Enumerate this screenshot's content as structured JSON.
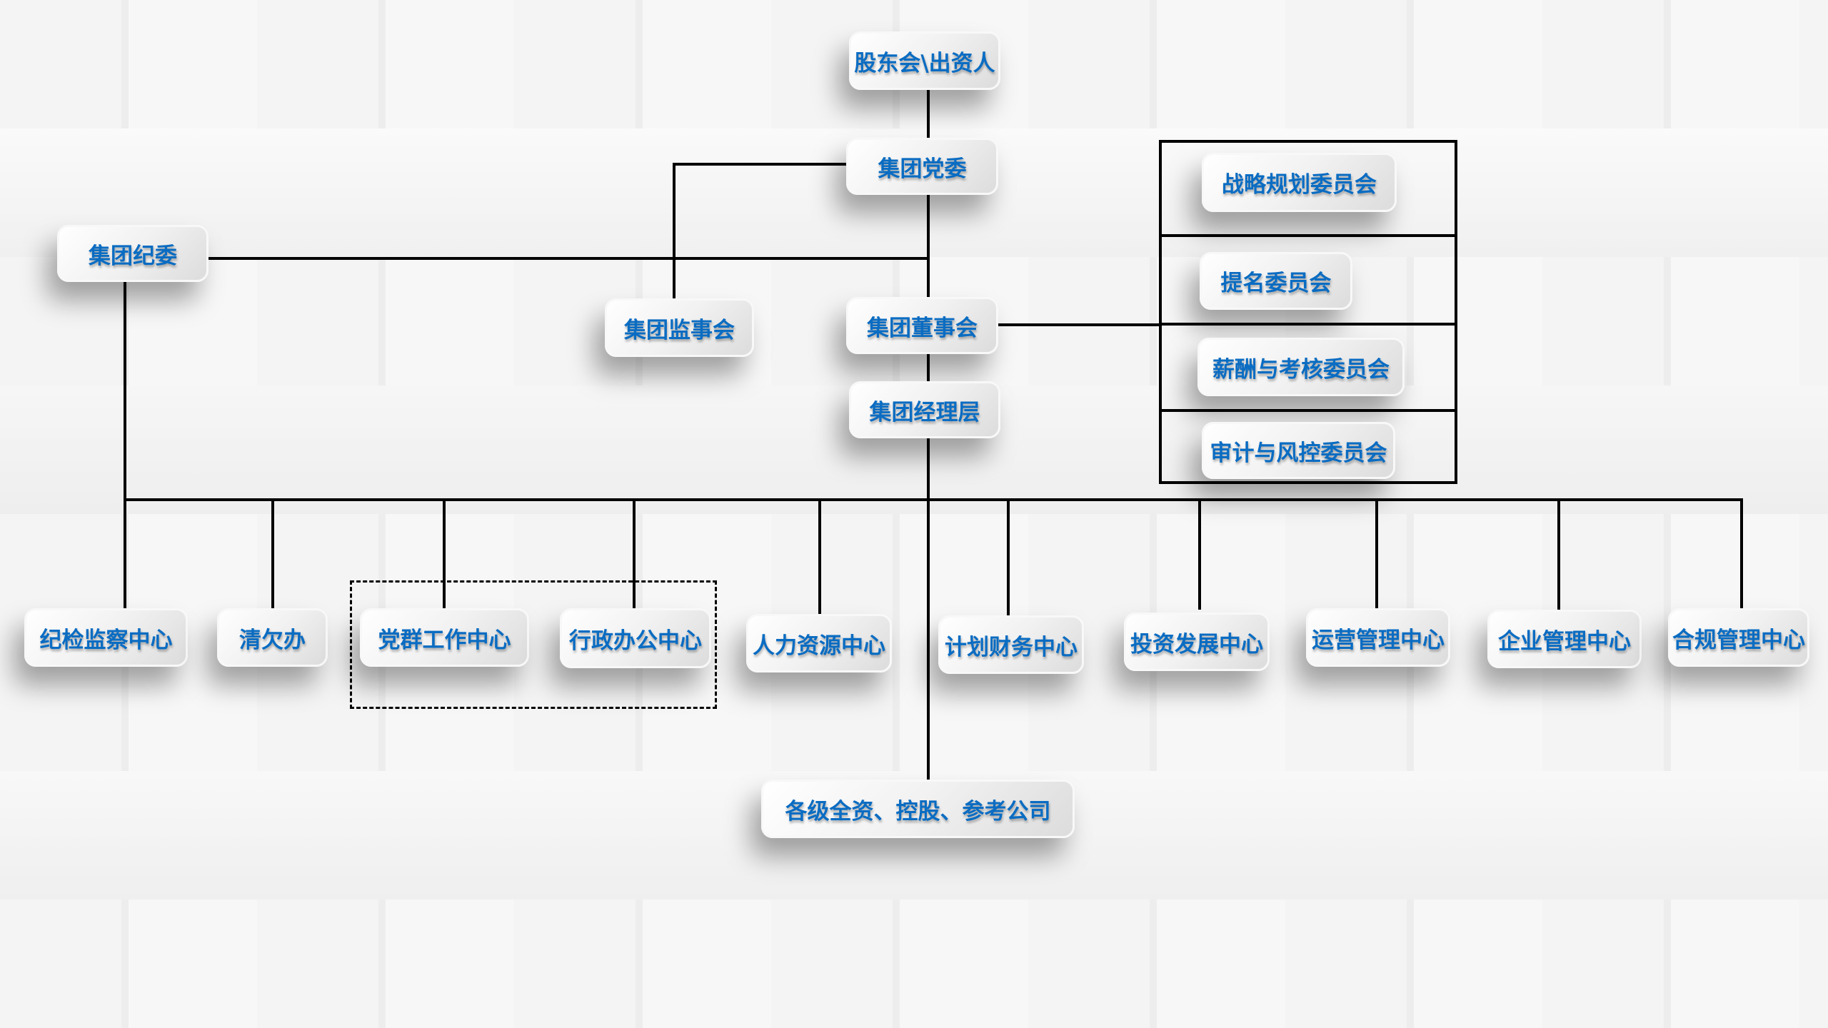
{
  "top": {
    "shareholders": "股东会\\出资人",
    "party_committee": "集团党委",
    "discipline_committee": "集团纪委",
    "supervisory_board": "集团监事会",
    "board_of_directors": "集团董事会",
    "management": "集团经理层",
    "subsidiaries": "各级全资、控股、参考公司"
  },
  "committees": [
    "战略规划委员会",
    "提名委员会",
    "薪酬与考核委员会",
    "审计与风控委员会"
  ],
  "departments": [
    "纪检监察中心",
    "清欠办",
    "党群工作中心",
    "行政办公中心",
    "人力资源中心",
    "计划财务中心",
    "投资发展中心",
    "运营管理中心",
    "企业管理中心",
    "合规管理中心"
  ],
  "colors": {
    "text": "#0a6cc2",
    "lines": "#000000"
  }
}
